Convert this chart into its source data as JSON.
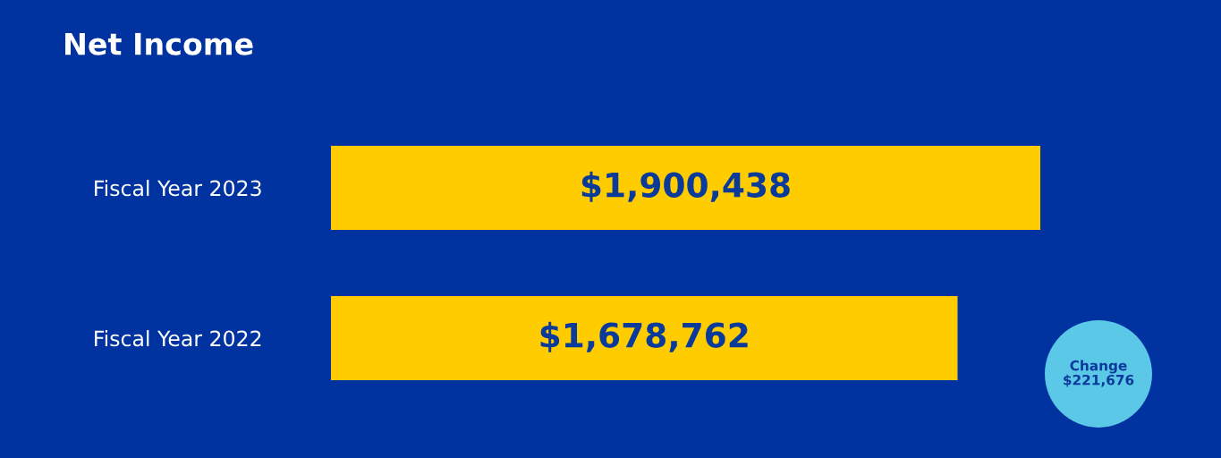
{
  "chart_data": {
    "type": "bar",
    "orientation": "horizontal",
    "title": "Net Income",
    "categories": [
      "Fiscal Year 2023",
      "Fiscal Year 2022"
    ],
    "values": [
      1900438,
      1678762
    ],
    "value_labels": [
      "$1,900,438",
      "$1,678,762"
    ],
    "color": "#ffcc00",
    "tick_labels": "y",
    "grid": false,
    "legend": false,
    "annotations": [
      "Change\n$221,676"
    ]
  }
}
